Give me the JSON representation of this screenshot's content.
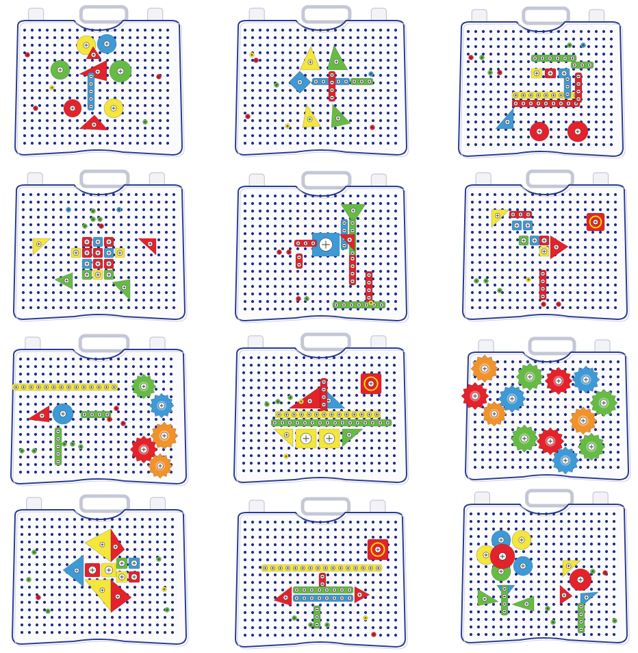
{
  "colors": {
    "peg": "#1d2f86",
    "case_fill": "#fbfbfe",
    "case_edge": "#2a3a8f",
    "case_shadow": "#c9cde0",
    "red": "#e4222b",
    "yellow": "#f4e63a",
    "green": "#66bb44",
    "blue": "#3e9ad6",
    "orange": "#f2922b"
  },
  "boards": [
    {
      "name": "board-pinwheel",
      "design": "pinwheel"
    },
    {
      "name": "board-butterfly",
      "design": "butterfly"
    },
    {
      "name": "board-train",
      "design": "train"
    },
    {
      "name": "board-turtle",
      "design": "turtle"
    },
    {
      "name": "board-horse",
      "design": "horse"
    },
    {
      "name": "board-bird",
      "design": "bird"
    },
    {
      "name": "board-helicopter-gears",
      "design": "helicopter-gears"
    },
    {
      "name": "board-sailboat",
      "design": "sailboat"
    },
    {
      "name": "board-gear-ring",
      "design": "gear-ring"
    },
    {
      "name": "board-fish",
      "design": "fish"
    },
    {
      "name": "board-airplane",
      "design": "airplane"
    },
    {
      "name": "board-flowers",
      "design": "flowers"
    }
  ]
}
